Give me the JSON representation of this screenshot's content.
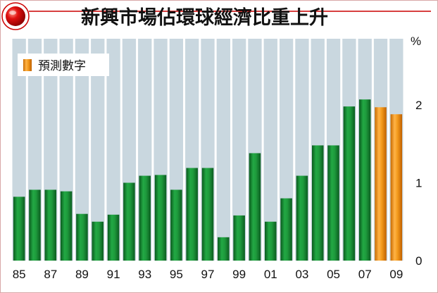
{
  "header": {
    "title": "新興市場佔環球經濟比重上升"
  },
  "chart_data": {
    "type": "bar",
    "title": "新興市場佔環球經濟比重上升",
    "unit": "%",
    "categories": [
      "1985",
      "1986",
      "1987",
      "1988",
      "1989",
      "1990",
      "1991",
      "1992",
      "1993",
      "1994",
      "1995",
      "1996",
      "1997",
      "1998",
      "1999",
      "2000",
      "2001",
      "2002",
      "2003",
      "2004",
      "2005",
      "2006",
      "2007",
      "2008",
      "2009"
    ],
    "values": [
      0.82,
      0.91,
      0.91,
      0.89,
      0.6,
      0.5,
      0.59,
      1.0,
      1.09,
      1.1,
      0.91,
      1.19,
      1.19,
      0.3,
      0.58,
      1.38,
      0.5,
      0.8,
      1.09,
      1.48,
      1.48,
      1.98,
      2.07,
      1.97,
      1.88
    ],
    "forecast": [
      false,
      false,
      false,
      false,
      false,
      false,
      false,
      false,
      false,
      false,
      false,
      false,
      false,
      false,
      false,
      false,
      false,
      false,
      false,
      false,
      false,
      false,
      false,
      true,
      true
    ],
    "x_tick_labels": [
      "85",
      "87",
      "89",
      "91",
      "93",
      "95",
      "97",
      "99",
      "01",
      "03",
      "05",
      "07",
      "09"
    ],
    "x_tick_indices": [
      0,
      2,
      4,
      6,
      8,
      10,
      12,
      14,
      16,
      18,
      20,
      22,
      24
    ],
    "y_ticks": [
      0,
      1,
      2
    ],
    "y_tick_labels": [
      "0",
      "1",
      "2"
    ],
    "ylim": [
      0,
      2.85
    ],
    "legend": {
      "entries": [
        {
          "label": "預測數字",
          "kind": "forecast"
        }
      ],
      "placement": "top-left"
    },
    "grid": true,
    "colors": {
      "actual_bar": "#1f9a3a",
      "actual_bar_dark": "#0a5a1e",
      "forecast_bar": "#f39a1c",
      "forecast_bar_dark": "#c86a00",
      "column_band": "#c9d7df",
      "accent": "#cc0000"
    }
  }
}
